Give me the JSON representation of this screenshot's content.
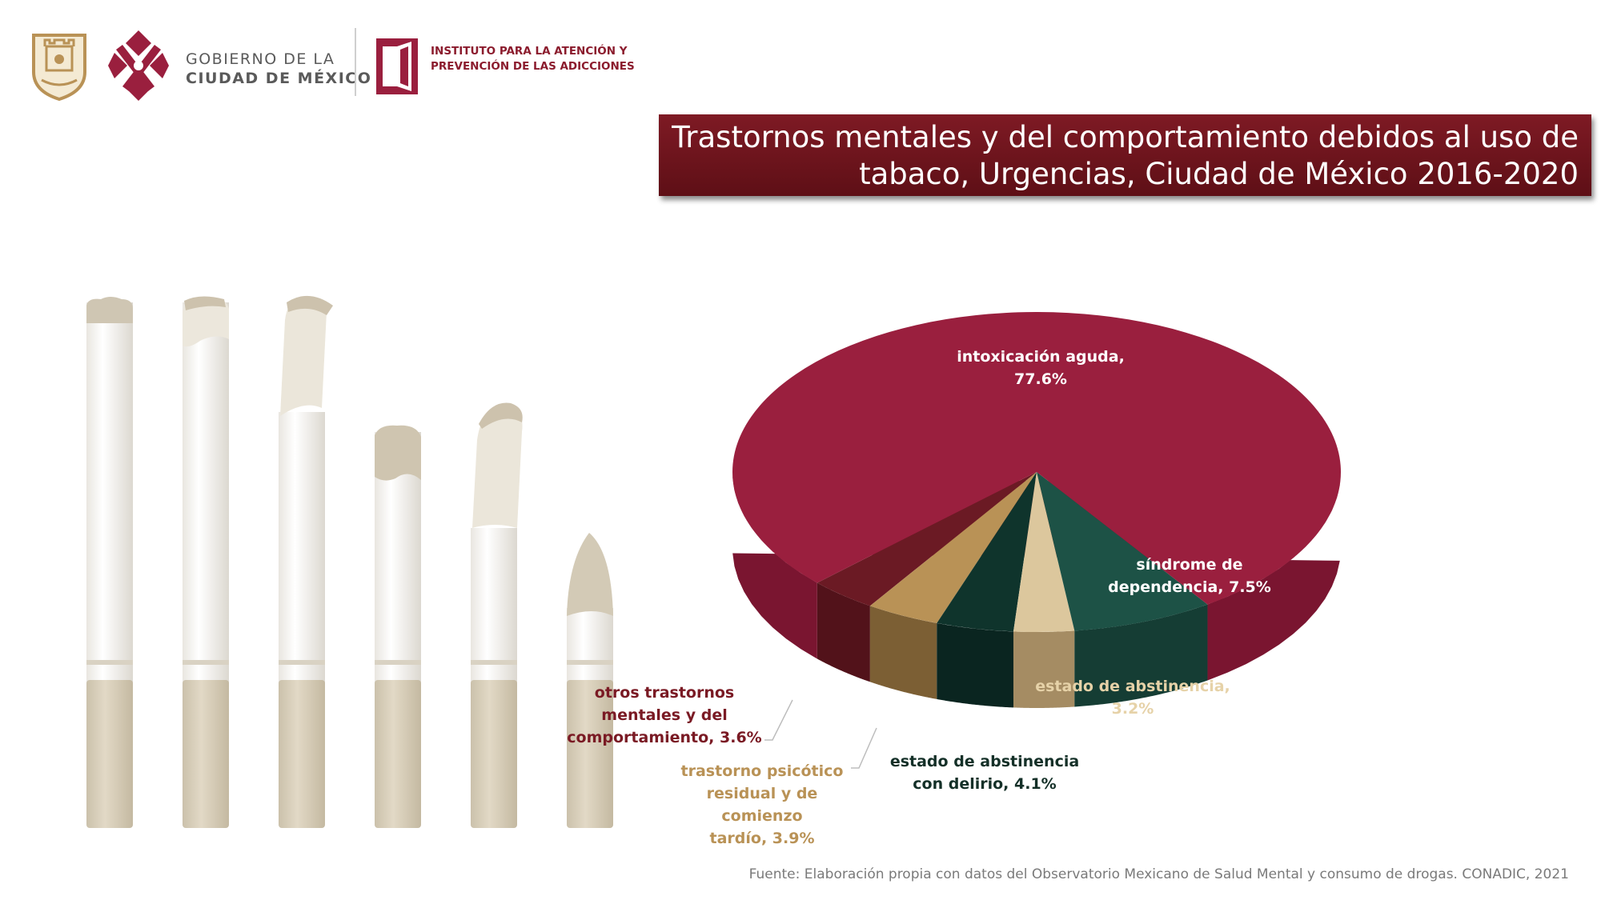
{
  "header": {
    "gob_line1": "GOBIERNO DE LA",
    "gob_line2": "CIUDAD DE MÉXICO",
    "inst_line1": "INSTITUTO PARA LA ATENCIÓN Y",
    "inst_line2": "PREVENCIÓN DE LAS ADICCIONES"
  },
  "colors": {
    "maroon": "#9a1f3e",
    "dark_maroon": "#6b1a24",
    "gold": "#b99256",
    "dark_green": "#0f342c",
    "tan": "#dcc79d",
    "green": "#1d5246",
    "title_bg": "#6e141d"
  },
  "chart_data": {
    "type": "pie",
    "title_line1": "Trastornos mentales y del comportamiento debidos al uso de",
    "title_line2": "tabaco, Urgencias, Ciudad de México 2016-2020",
    "slices": [
      {
        "name": "intoxicación aguda",
        "value": 77.6,
        "label_line1": "intoxicación aguda,",
        "label_line2": "77.6%"
      },
      {
        "name": "síndrome de dependencia",
        "value": 7.5,
        "label_line1": "síndrome de",
        "label_line2": "dependencia, 7.5%"
      },
      {
        "name": "estado de abstinencia",
        "value": 3.2,
        "label_line1": "estado de abstinencia,",
        "label_line2": "3.2%"
      },
      {
        "name": "estado de abstinencia con delirio",
        "value": 4.1,
        "label_line1": "estado de abstinencia",
        "label_line2": "con delirio, 4.1%"
      },
      {
        "name": "trastorno psicótico residual y de comienzo tardío",
        "value": 3.9,
        "label_line1": "trastorno psicótico",
        "label_line2": "residual y de comienzo",
        "label_line3": "tardío, 3.9%"
      },
      {
        "name": "otros trastornos mentales y del comportamiento",
        "value": 3.6,
        "label_line1": "otros trastornos",
        "label_line2": "mentales y del",
        "label_line3": "comportamiento, 3.6%"
      }
    ]
  },
  "source": "Fuente: Elaboración propia con datos del Observatorio Mexicano de Salud Mental y consumo de drogas. CONADIC, 2021"
}
